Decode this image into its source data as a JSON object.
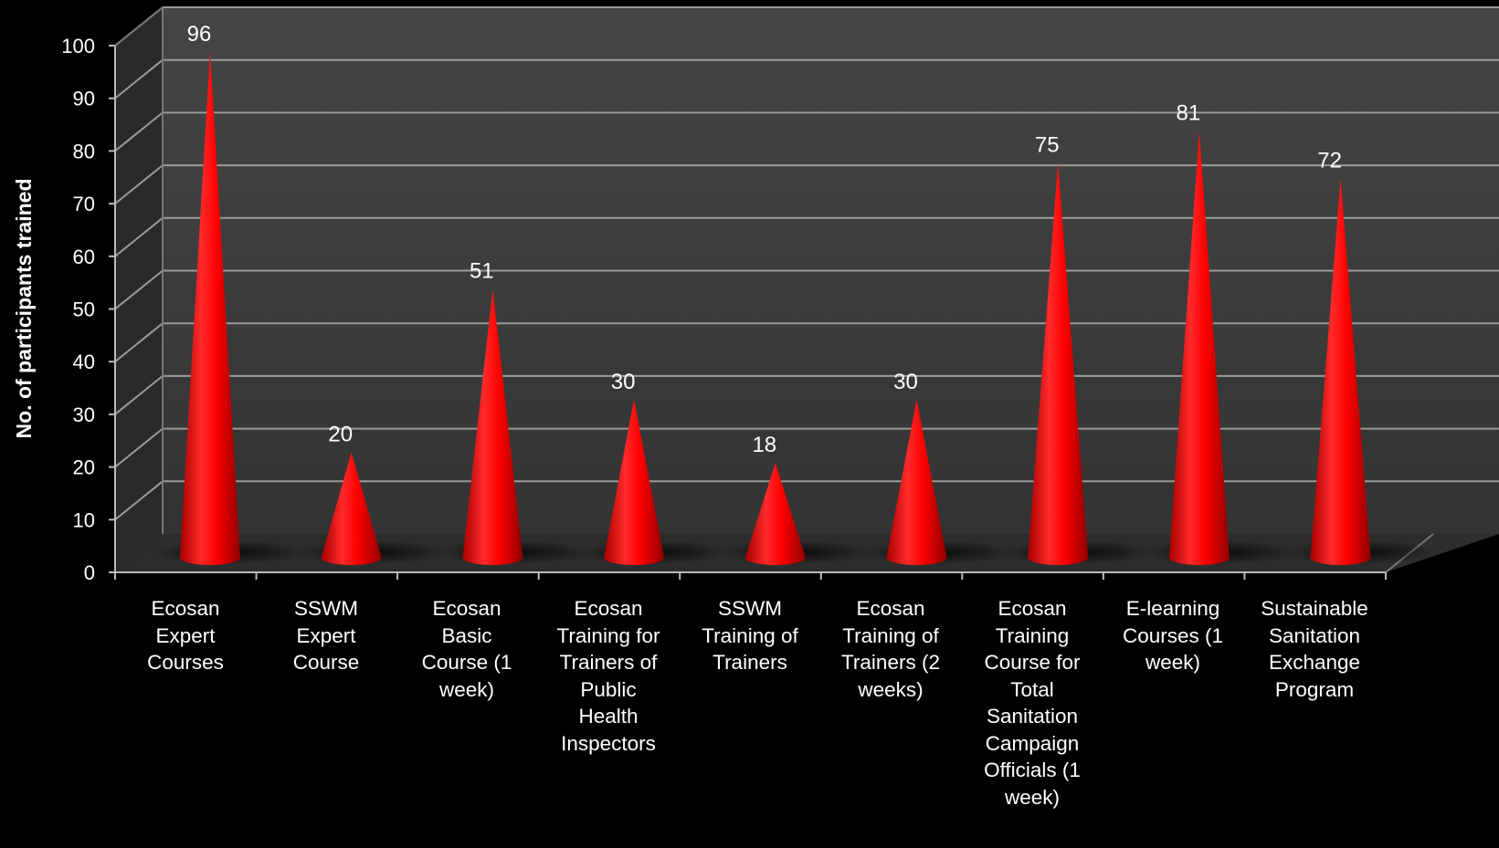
{
  "chart_data": {
    "type": "bar",
    "style": "3d-cone",
    "ylabel": "No. of participants trained",
    "xlabel": "",
    "ylim": [
      0,
      100
    ],
    "ytick_step": 10,
    "yticks": [
      "0",
      "10",
      "20",
      "30",
      "40",
      "50",
      "60",
      "70",
      "80",
      "90",
      "100"
    ],
    "grid": true,
    "legend": "none",
    "colors": {
      "background": "#000000",
      "walls": "#3c3c3c",
      "floor": "#2f2f2f",
      "cone": "#ff0000",
      "gridline": "#9a9a9a"
    },
    "categories": [
      "Ecosan Expert Courses",
      "SSWM Expert Course",
      "Ecosan Basic Course (1 week)",
      "Ecosan Training for Trainers of Public Health Inspectors",
      "SSWM Training of Trainers",
      "Ecosan Training of Trainers (2 weeks)",
      "Ecosan Training Course for Total Sanitation Campaign Officials (1 week)",
      "E-learning Courses (1 week)",
      "Sustainable Sanitation Exchange Program"
    ],
    "category_lines": [
      [
        "Ecosan",
        "Expert",
        "Courses"
      ],
      [
        "SSWM",
        "Expert",
        "Course"
      ],
      [
        "Ecosan",
        "Basic",
        "Course (1",
        "week)"
      ],
      [
        "Ecosan",
        "Training for",
        "Trainers of",
        "Public",
        "Health",
        "Inspectors"
      ],
      [
        "SSWM",
        "Training of",
        "Trainers"
      ],
      [
        "Ecosan",
        "Training of",
        "Trainers (2",
        "weeks)"
      ],
      [
        "Ecosan",
        "Training",
        "Course for",
        "Total",
        "Sanitation",
        "Campaign",
        "Officials (1",
        "week)"
      ],
      [
        "E-learning",
        "Courses (1",
        "week)"
      ],
      [
        "Sustainable",
        "Sanitation",
        "Exchange",
        "Program"
      ]
    ],
    "values": [
      96,
      20,
      51,
      30,
      18,
      30,
      75,
      81,
      72
    ],
    "data_labels": [
      "96",
      "20",
      "51",
      "30",
      "18",
      "30",
      "75",
      "81",
      "72"
    ]
  }
}
